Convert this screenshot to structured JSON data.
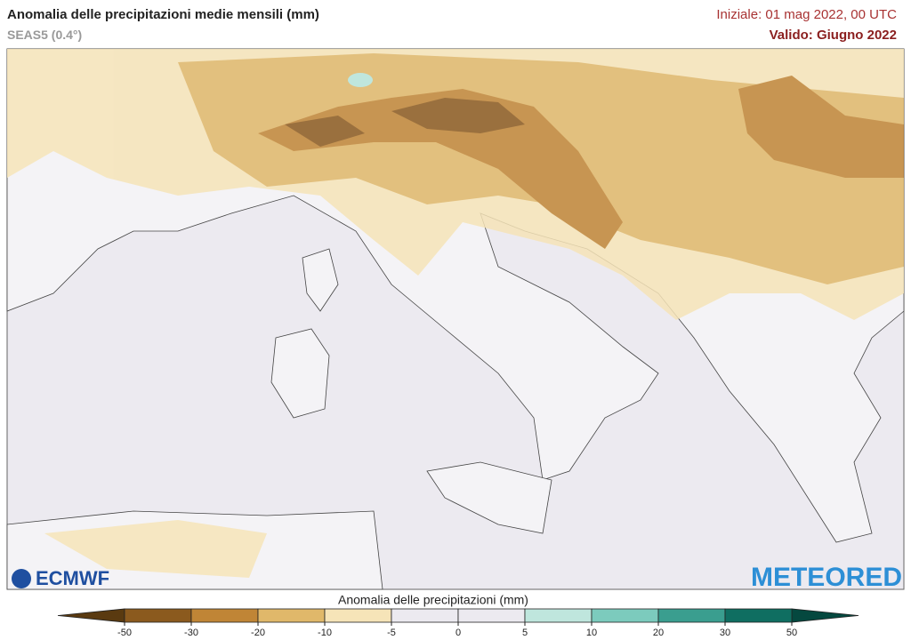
{
  "header": {
    "title": "Anomalia delle precipitazioni medie mensili (mm)",
    "subtitle": "SEAS5 (0.4°)",
    "init": "Iniziale: 01 mag 2022, 00 UTC",
    "valid": "Valido: Giugno 2022"
  },
  "logos": {
    "left": "ECMWF",
    "right": "METEORED"
  },
  "legend": {
    "title": "Anomalia delle precipitazioni (mm)",
    "ticks": [
      -50,
      -30,
      -20,
      -10,
      -5,
      0,
      5,
      10,
      20,
      30,
      50
    ],
    "colors": [
      "#5a3a10",
      "#8b5a1e",
      "#c08536",
      "#e0b86a",
      "#f6e4b8",
      "#eceaf0",
      "#eceaf0",
      "#bfe6dd",
      "#7ccbbd",
      "#3a9e8f",
      "#0f6e61",
      "#05483f"
    ]
  }
}
